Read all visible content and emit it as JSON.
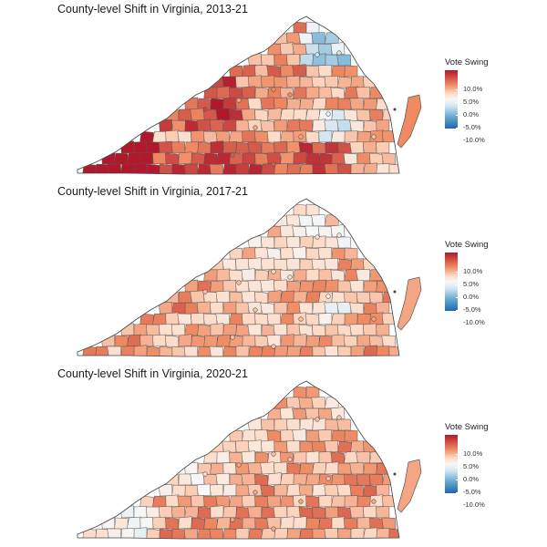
{
  "panels": [
    {
      "title": "County-level Shift in Virginia, 2013-21",
      "legend": {
        "title": "Vote Swing",
        "ticks": [
          "10.0%",
          "5.0%",
          "0.0%",
          "-5.0%",
          "-10.0%"
        ]
      },
      "shading": {
        "description_values": "approximate dominant vote-swing per region (percentage points)",
        "southwest": 11,
        "west_central": 8,
        "shenandoah": 9,
        "piedmont": 6,
        "southside": 8,
        "central": 5,
        "nova": -3,
        "richmond": -1,
        "tidewater": 4,
        "eastern_shore": 6
      }
    },
    {
      "title": "County-level Shift in Virginia, 2017-21",
      "legend": {
        "title": "Vote Swing",
        "ticks": [
          "10.0%",
          "5.0%",
          "0.0%",
          "-5.0%",
          "-10.0%"
        ]
      },
      "shading": {
        "southwest": 5,
        "west_central": 6,
        "shenandoah": 4,
        "piedmont": 3,
        "southside": 4,
        "central": 4,
        "nova": 2,
        "richmond": 1,
        "tidewater": 5,
        "eastern_shore": 5
      }
    },
    {
      "title": "County-level Shift in Virginia, 2020-21",
      "legend": {
        "title": "Vote Swing",
        "ticks": [
          "10.0%",
          "5.0%",
          "0.0%",
          "-5.0%",
          "-10.0%"
        ]
      },
      "shading": {
        "southwest": 1,
        "west_central": 2,
        "shenandoah": 3,
        "piedmont": 4,
        "southside": 5,
        "central": 5,
        "nova": 4,
        "richmond": 4,
        "tidewater": 5,
        "eastern_shore": 5
      }
    }
  ],
  "colors": {
    "high": "#b2182b",
    "mid_high": "#ef8a62",
    "low_high": "#fddbc7",
    "zero": "#f7f7f7",
    "low_neg": "#d1e5f0",
    "mid_neg": "#67a9cf",
    "neg": "#2166ac",
    "border": "#555555"
  }
}
